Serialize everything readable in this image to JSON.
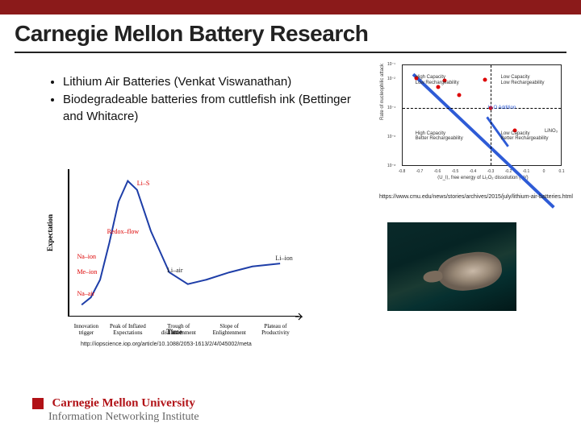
{
  "colors": {
    "header_bar": "#8b1a1a",
    "title_text": "#222222",
    "cmu_red": "#b11116",
    "curve_blue": "#1e3ea8",
    "point_red": "#d00000",
    "quad_line_blue": "#2e5bd6",
    "quad_anno_blue": "#2e5bd6",
    "background": "#ffffff"
  },
  "title": "Carnegie Mellon Battery Research",
  "bullets": [
    "Lithium Air Batteries (Venkat Viswanathan)",
    "Biodegradeable batteries from cuttlefish ink (Bettinger and Whitacre)"
  ],
  "citation_tr": "https://www.cmu.edu/news/stories/archives/2015/july/lithium-air-batteries.html",
  "citation_bl": "http://iopscience.iop.org/article/10.1088/2053-1613/2/4/045002/meta",
  "quadrant_chart": {
    "type": "scatter",
    "xlabel": "⟨U_l⟩, free energy of Li₂O₂ dissolution (eV)",
    "ylabel": "Rate of nucleophilic attack",
    "xlim": [
      -0.8,
      0.1
    ],
    "ylim_log10": [
      -8,
      -1
    ],
    "xtick_labels": [
      "-0.8",
      "-0.7",
      "-0.6",
      "-0.5",
      "-0.4",
      "-0.3",
      "-0.2",
      "-0.1",
      "0",
      "0.1"
    ],
    "ytick_labels": [
      "10⁻⁸",
      "10⁻⁶",
      "10⁻⁴",
      "10⁻²",
      "10⁻¹"
    ],
    "vline_x": -0.3,
    "hline_y_log10": -4,
    "diag_line": {
      "x1": -0.74,
      "y1_log10": -1.4,
      "x2": 0.06,
      "y2_log10": -7.3,
      "color": "#2e5bd6",
      "width": 2
    },
    "anno_arrow_label": "H₂O Addition",
    "points": [
      {
        "x": -0.72,
        "y_log10": -1.9
      },
      {
        "x": -0.56,
        "y_log10": -2.1
      },
      {
        "x": -0.6,
        "y_log10": -2.5
      },
      {
        "x": -0.48,
        "y_log10": -3.1
      },
      {
        "x": -0.16,
        "y_log10": -5.6
      },
      {
        "x": -0.33,
        "y_log10": -2.0
      },
      {
        "x": -0.3,
        "y_log10": -4.0
      }
    ],
    "quad_labels": {
      "tl": "High Capacity\nLow Rechargeability",
      "tr": "Low Capacity\nLow Rechargeability",
      "bl": "High Capacity\nBetter Rechargeability",
      "br": "Low Capacity\nBetter Rechargeability"
    },
    "point_right_label": "LiNO₃",
    "title_fontsize": 7,
    "label_fontsize": 6
  },
  "hype_chart": {
    "type": "line",
    "ylabel": "Expectation",
    "xlabel_time": "Time",
    "x_phase_labels": [
      "Innovation\ntrigger",
      "Peak of Inflated\nExpectations",
      "Trough of\ndisillusionment",
      "Slope of\nEnlightenment",
      "Plateau of\nProductivity"
    ],
    "x_phase_positions": [
      0.08,
      0.26,
      0.48,
      0.7,
      0.9
    ],
    "curve_points_norm": [
      [
        0.06,
        0.92
      ],
      [
        0.1,
        0.87
      ],
      [
        0.14,
        0.75
      ],
      [
        0.18,
        0.5
      ],
      [
        0.22,
        0.22
      ],
      [
        0.26,
        0.08
      ],
      [
        0.3,
        0.14
      ],
      [
        0.36,
        0.42
      ],
      [
        0.44,
        0.7
      ],
      [
        0.52,
        0.78
      ],
      [
        0.6,
        0.75
      ],
      [
        0.7,
        0.7
      ],
      [
        0.8,
        0.66
      ],
      [
        0.92,
        0.64
      ]
    ],
    "curve_color": "#1e3ea8",
    "curve_width": 2,
    "annotations": [
      {
        "text": "Li–S",
        "nx": 0.3,
        "ny": 0.07,
        "color": "#d00"
      },
      {
        "text": "Redox–flow",
        "nx": 0.17,
        "ny": 0.4,
        "color": "#d00"
      },
      {
        "text": "Na–ion",
        "nx": 0.04,
        "ny": 0.57,
        "color": "#d00"
      },
      {
        "text": "Me–ion",
        "nx": 0.04,
        "ny": 0.67,
        "color": "#d00"
      },
      {
        "text": "Na–air",
        "nx": 0.04,
        "ny": 0.82,
        "color": "#d00"
      },
      {
        "text": "Li–air",
        "nx": 0.43,
        "ny": 0.66,
        "color": "#222"
      },
      {
        "text": "Li–ion",
        "nx": 0.9,
        "ny": 0.58,
        "color": "#222"
      }
    ]
  },
  "photo_caption": "",
  "footer": {
    "line1": "Carnegie Mellon University",
    "line2": "Information Networking Institute"
  }
}
